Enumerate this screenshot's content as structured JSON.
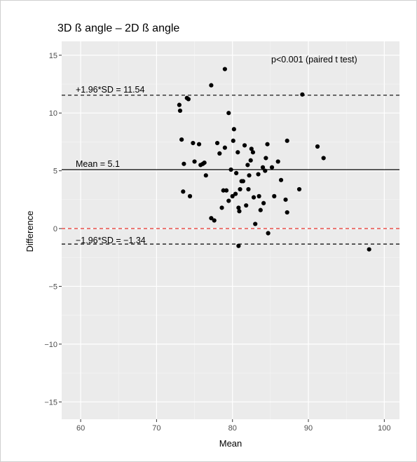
{
  "chart_data": {
    "type": "scatter",
    "title": "3D ß angle – 2D ß angle",
    "xlabel": "Mean",
    "ylabel": "Difference",
    "xlim": [
      57.5,
      102
    ],
    "ylim": [
      -16.5,
      16.2
    ],
    "xticks": [
      60,
      70,
      80,
      90,
      100
    ],
    "yticks": [
      -15,
      -10,
      -5,
      0,
      5,
      10,
      15
    ],
    "xtick_labels": [
      "60",
      "70",
      "80",
      "90",
      "100"
    ],
    "ytick_labels": [
      "−15",
      "−10",
      "−5",
      "0",
      "5",
      "10",
      "15"
    ],
    "grid": true,
    "hlines": [
      {
        "y": 11.54,
        "style": "dashed",
        "color": "#000000",
        "label": "+1.96*SD = 11.54"
      },
      {
        "y": 5.1,
        "style": "solid",
        "color": "#000000",
        "label": "Mean = 5.1"
      },
      {
        "y": 0,
        "style": "dashed",
        "color": "#e8312a",
        "label": ""
      },
      {
        "y": -1.34,
        "style": "dashed",
        "color": "#000000",
        "label": "−1.96*SD = −1.34"
      }
    ],
    "annotation": "p<0.001 (paired t test)",
    "points": [
      [
        73.0,
        10.7
      ],
      [
        73.1,
        10.2
      ],
      [
        74.0,
        11.3
      ],
      [
        74.2,
        11.2
      ],
      [
        77.2,
        12.4
      ],
      [
        79.0,
        13.8
      ],
      [
        89.2,
        11.6
      ],
      [
        73.3,
        7.7
      ],
      [
        73.6,
        5.6
      ],
      [
        73.5,
        3.2
      ],
      [
        74.4,
        2.8
      ],
      [
        74.8,
        7.4
      ],
      [
        75.0,
        5.8
      ],
      [
        75.6,
        7.3
      ],
      [
        75.8,
        5.5
      ],
      [
        76.1,
        5.6
      ],
      [
        76.3,
        5.7
      ],
      [
        76.5,
        4.6
      ],
      [
        77.2,
        0.9
      ],
      [
        77.6,
        0.7
      ],
      [
        78.0,
        7.4
      ],
      [
        78.3,
        6.5
      ],
      [
        78.6,
        1.8
      ],
      [
        78.8,
        3.3
      ],
      [
        79.0,
        7.0
      ],
      [
        79.2,
        3.3
      ],
      [
        79.5,
        10.0
      ],
      [
        79.5,
        2.4
      ],
      [
        79.8,
        5.1
      ],
      [
        80.0,
        2.8
      ],
      [
        80.1,
        7.6
      ],
      [
        80.2,
        8.6
      ],
      [
        80.4,
        3.0
      ],
      [
        80.5,
        4.8
      ],
      [
        80.7,
        6.6
      ],
      [
        80.8,
        1.8
      ],
      [
        80.9,
        1.5
      ],
      [
        81.0,
        3.4
      ],
      [
        81.2,
        4.1
      ],
      [
        81.4,
        4.1
      ],
      [
        81.6,
        7.2
      ],
      [
        81.8,
        2.0
      ],
      [
        82.0,
        5.5
      ],
      [
        82.1,
        3.4
      ],
      [
        82.2,
        4.6
      ],
      [
        82.4,
        5.9
      ],
      [
        82.5,
        6.9
      ],
      [
        82.7,
        6.6
      ],
      [
        82.8,
        2.7
      ],
      [
        83.0,
        0.4
      ],
      [
        83.4,
        4.7
      ],
      [
        83.5,
        2.8
      ],
      [
        83.7,
        1.6
      ],
      [
        84.0,
        5.3
      ],
      [
        84.1,
        2.2
      ],
      [
        84.3,
        5.0
      ],
      [
        84.4,
        6.1
      ],
      [
        84.6,
        7.3
      ],
      [
        84.7,
        -0.4
      ],
      [
        85.2,
        5.3
      ],
      [
        85.5,
        2.8
      ],
      [
        86.0,
        5.8
      ],
      [
        86.4,
        4.2
      ],
      [
        87.0,
        2.5
      ],
      [
        87.2,
        7.6
      ],
      [
        87.2,
        1.4
      ],
      [
        88.8,
        3.4
      ],
      [
        91.2,
        7.1
      ],
      [
        92.0,
        6.1
      ],
      [
        80.8,
        -1.5
      ],
      [
        98.0,
        -1.8
      ]
    ]
  }
}
